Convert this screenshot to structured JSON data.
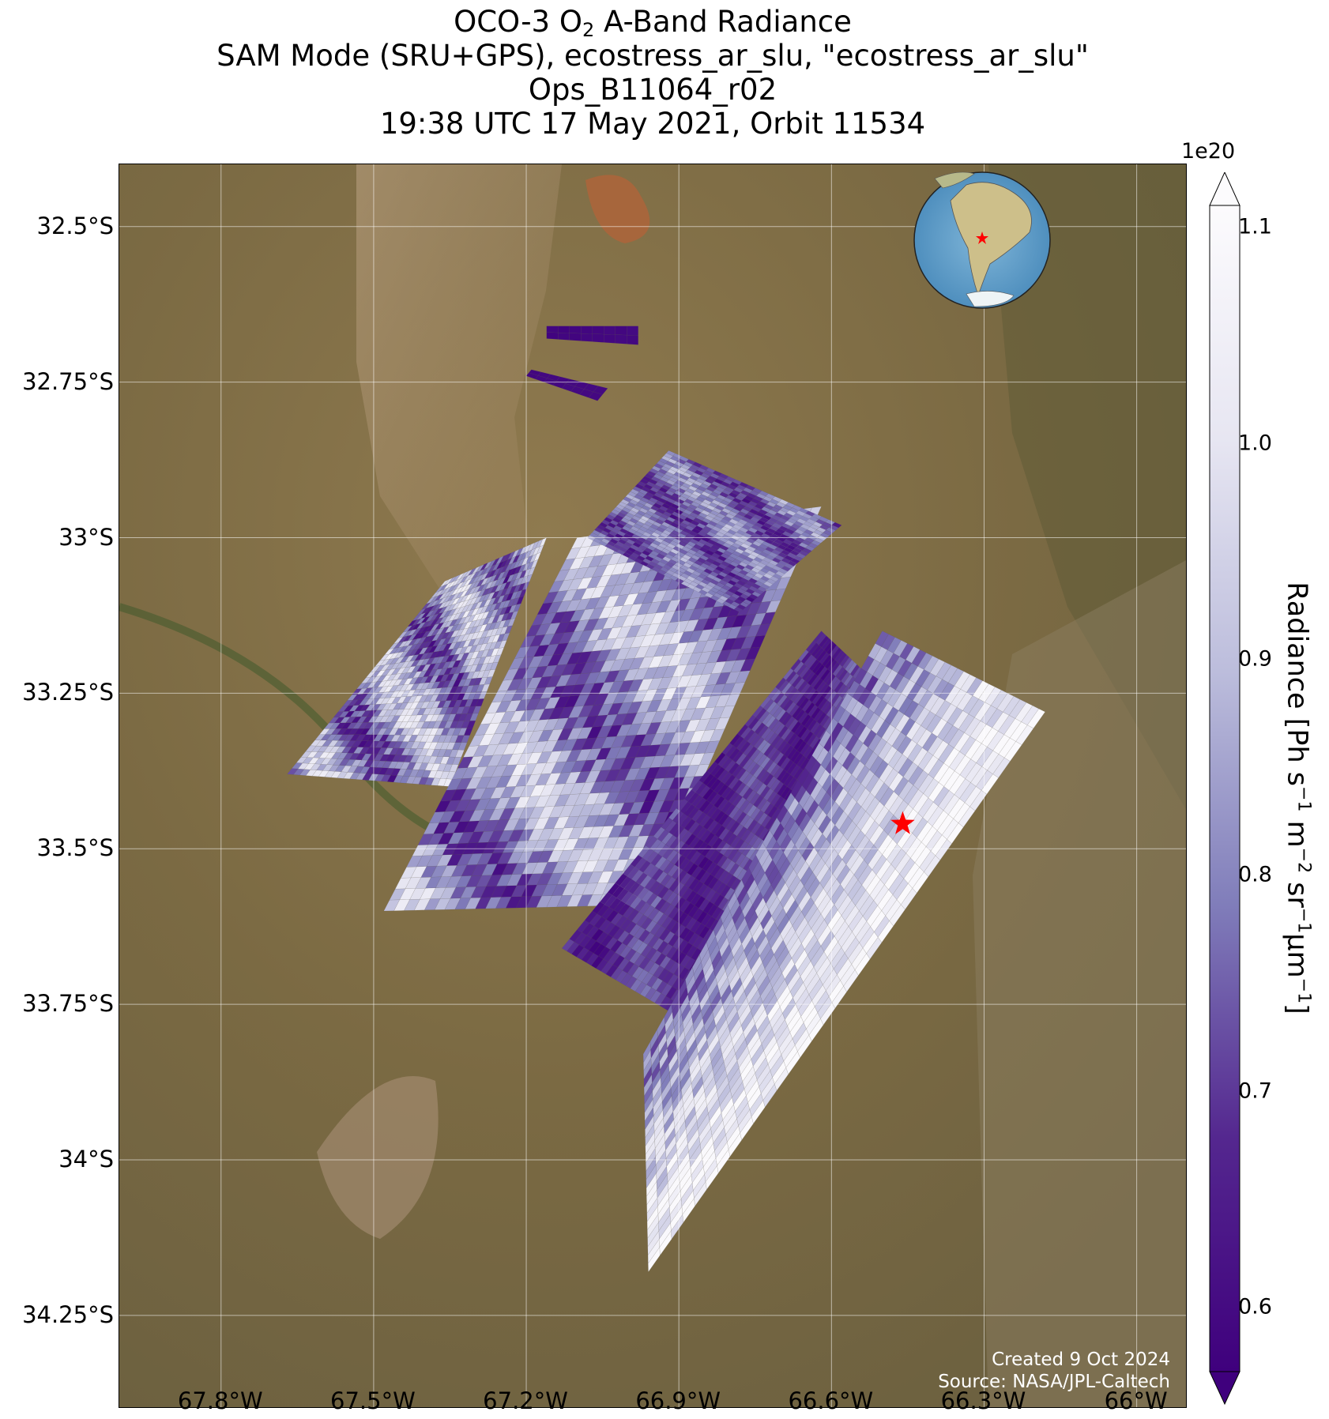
{
  "title": {
    "line1_prefix": "OCO-3 O",
    "line1_sub": "2",
    "line1_suffix": " A-Band Radiance",
    "line2": "SAM Mode (SRU+GPS), ecostress_ar_slu, \"ecostress_ar_slu\"",
    "line3": "Ops_B11064_r02",
    "line4": "19:38 UTC 17 May 2021, Orbit 11534"
  },
  "axes": {
    "lat_ticks": [
      "32.5°S",
      "32.75°S",
      "33°S",
      "33.25°S",
      "33.5°S",
      "33.75°S",
      "34°S",
      "34.25°S"
    ],
    "lon_ticks": [
      "67.8°W",
      "67.5°W",
      "67.2°W",
      "66.9°W",
      "66.6°W",
      "66.3°W",
      "66°W"
    ],
    "lat_values": [
      -32.5,
      -32.75,
      -33.0,
      -33.25,
      -33.5,
      -33.75,
      -34.0,
      -34.25
    ],
    "lon_values": [
      -67.8,
      -67.5,
      -67.2,
      -66.9,
      -66.6,
      -66.3,
      -66.0
    ],
    "lat_range": [
      -34.4,
      -32.4
    ],
    "lon_range": [
      -68.0,
      -65.9
    ],
    "grid": true
  },
  "colorbar": {
    "exponent": "1e20",
    "label_prefix": "Radiance [Ph s",
    "label_full": "Radiance [Ph s⁻¹ m⁻² sr⁻¹μm⁻¹]",
    "ticks": [
      "0.6",
      "0.7",
      "0.8",
      "0.9",
      "1.0",
      "1.1"
    ],
    "tick_values": [
      0.6,
      0.7,
      0.8,
      0.9,
      1.0,
      1.1
    ],
    "range": [
      0.57,
      1.11
    ],
    "extend": "both",
    "colormap": "Purples_r",
    "color_low": "#3f007d",
    "color_high": "#fcfbfd"
  },
  "target_marker": {
    "symbol": "red-star",
    "lon": -66.46,
    "lat": -33.46,
    "color": "#ff0000"
  },
  "inset_globe": {
    "center": "South America",
    "marker": "red-star",
    "ocean_color": "#5b9bc8",
    "land_color": "#c9c28b"
  },
  "credit": {
    "created": "Created 9 Oct 2024",
    "source": "Source: NASA/JPL-Caltech"
  },
  "chart_data": {
    "type": "heatmap",
    "description_units": "radiance ×1e20 Ph s⁻¹ m⁻² sr⁻¹ μm⁻¹",
    "swaths": [
      {
        "name": "strip-west",
        "corners": [
          [
            -67.67,
            -33.38
          ],
          [
            -67.36,
            -33.07
          ],
          [
            -67.16,
            -33.0
          ],
          [
            -67.35,
            -33.4
          ]
        ],
        "radiance_range": [
          0.6,
          1.1
        ]
      },
      {
        "name": "strip-central",
        "corners": [
          [
            -67.48,
            -33.6
          ],
          [
            -67.1,
            -33.0
          ],
          [
            -66.62,
            -32.95
          ],
          [
            -66.96,
            -33.59
          ]
        ],
        "radiance_range": [
          0.6,
          1.1
        ]
      },
      {
        "name": "strip-north",
        "corners": [
          [
            -67.08,
            -33.0
          ],
          [
            -66.92,
            -32.86
          ],
          [
            -66.58,
            -32.98
          ],
          [
            -66.78,
            -33.12
          ]
        ],
        "radiance_range": [
          0.6,
          0.95
        ]
      },
      {
        "name": "strip-east-dark",
        "corners": [
          [
            -67.13,
            -33.66
          ],
          [
            -66.62,
            -33.15
          ],
          [
            -66.49,
            -33.25
          ],
          [
            -66.88,
            -33.78
          ]
        ],
        "radiance_range": [
          0.58,
          0.8
        ]
      },
      {
        "name": "strip-east",
        "corners": [
          [
            -66.97,
            -33.83
          ],
          [
            -66.5,
            -33.15
          ],
          [
            -66.18,
            -33.28
          ],
          [
            -66.96,
            -34.18
          ]
        ],
        "radiance_range": [
          0.6,
          1.1
        ]
      },
      {
        "name": "small-north-1",
        "corners": [
          [
            -67.16,
            -32.66
          ],
          [
            -66.98,
            -32.66
          ],
          [
            -66.98,
            -32.69
          ],
          [
            -67.16,
            -32.68
          ]
        ],
        "radiance_range": [
          0.58,
          0.6
        ]
      },
      {
        "name": "small-north-2",
        "corners": [
          [
            -67.19,
            -32.73
          ],
          [
            -67.04,
            -32.76
          ],
          [
            -67.06,
            -32.78
          ],
          [
            -67.2,
            -32.74
          ]
        ],
        "radiance_range": [
          0.58,
          0.6
        ]
      }
    ]
  }
}
